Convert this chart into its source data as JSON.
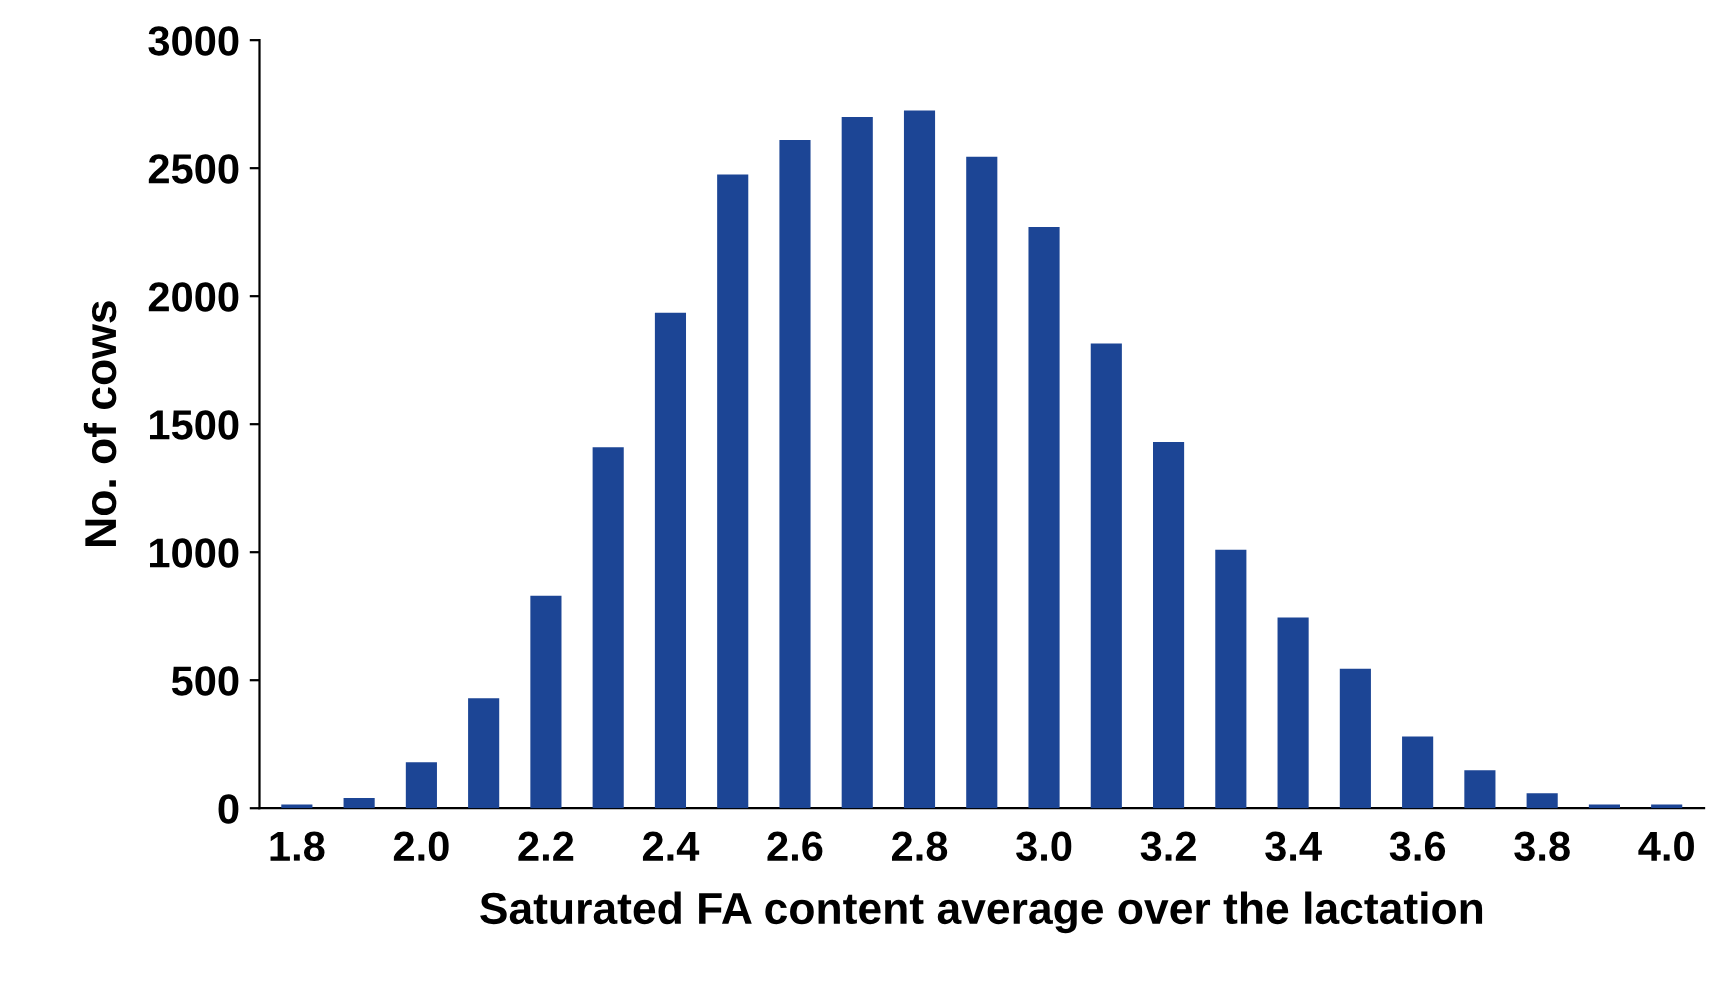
{
  "chart_data": {
    "type": "bar",
    "xlabel": "Saturated FA content average over the lactation",
    "ylabel": "No. of cows",
    "categories": [
      "1.8",
      null,
      "2.0",
      null,
      "2.2",
      null,
      "2.4",
      null,
      "2.6",
      null,
      "2.8",
      null,
      "3.0",
      null,
      "3.2",
      null,
      "3.4",
      null,
      "3.6",
      null,
      "3.8",
      null,
      "4.0"
    ],
    "values": [
      15,
      40,
      180,
      430,
      830,
      1410,
      1935,
      2475,
      2610,
      2700,
      2725,
      2545,
      2270,
      1815,
      1430,
      1010,
      745,
      545,
      280,
      148,
      58,
      15,
      15
    ],
    "color": "#1c4595",
    "ylim": [
      0,
      3000
    ],
    "yticks": [
      0,
      500,
      1000,
      1500,
      2000,
      2500,
      3000
    ],
    "grid": false,
    "legend": false
  }
}
